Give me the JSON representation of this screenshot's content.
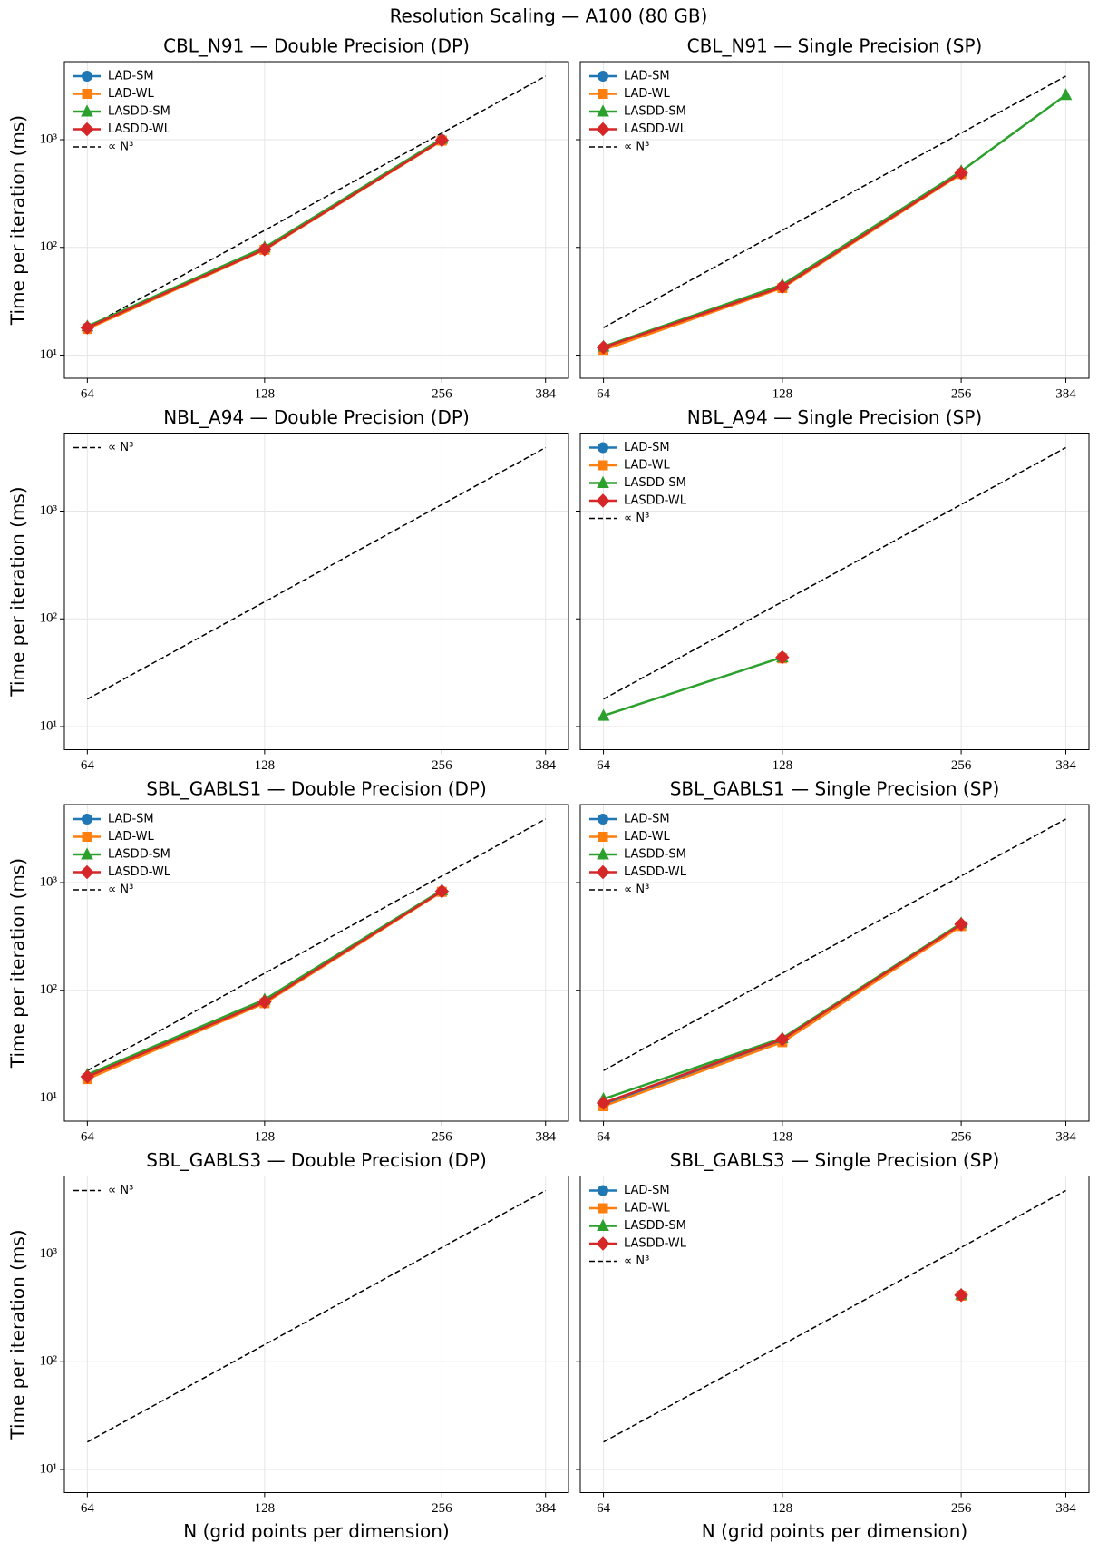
{
  "title": "Resolution Scaling — A100 (80 GB)",
  "chart_data": [
    {
      "type": "line",
      "title": "CBL_N91 — Double Precision (DP)",
      "ylabel": "Time per iteration (ms)",
      "x": [
        64,
        128,
        256,
        384
      ],
      "xscale": "log",
      "yscale": "log",
      "xlim": [
        58.5,
        420
      ],
      "xticks": [
        64,
        128,
        256,
        384
      ],
      "ylim": [
        6.1,
        5300
      ],
      "yticks": [
        {
          "value": 10,
          "label": "10¹"
        },
        {
          "value": 100,
          "label": "10²"
        },
        {
          "value": 1000,
          "label": "10³"
        }
      ],
      "grid": true,
      "legend": "upper left",
      "series": [
        {
          "name": "LAD-SM",
          "color": "#1f77b4",
          "marker": "circle",
          "values": [
            18,
            97,
            1000,
            null
          ]
        },
        {
          "name": "LAD-WL",
          "color": "#ff7f0e",
          "marker": "square",
          "values": [
            17.5,
            95,
            980,
            null
          ]
        },
        {
          "name": "LASDD-SM",
          "color": "#2ca02c",
          "marker": "triangle",
          "values": [
            18.5,
            100,
            1020,
            null
          ]
        },
        {
          "name": "LASDD-WL",
          "color": "#d62728",
          "marker": "diamond",
          "values": [
            18,
            96,
            990,
            null
          ]
        },
        {
          "name": "∝ N³",
          "color": "#000000",
          "linestyle": "dashed",
          "values": [
            18,
            144,
            1152,
            3888
          ]
        }
      ]
    },
    {
      "type": "line",
      "title": "CBL_N91 — Single Precision (SP)",
      "x": [
        64,
        128,
        256,
        384
      ],
      "xscale": "log",
      "yscale": "log",
      "xlim": [
        58.5,
        420
      ],
      "xticks": [
        64,
        128,
        256,
        384
      ],
      "ylim": [
        6.1,
        5300
      ],
      "yticks": [
        10,
        100,
        1000
      ],
      "grid": true,
      "legend": "upper left",
      "series": [
        {
          "name": "LAD-SM",
          "color": "#1f77b4",
          "marker": "circle",
          "values": [
            11.5,
            43,
            490,
            null
          ]
        },
        {
          "name": "LAD-WL",
          "color": "#ff7f0e",
          "marker": "square",
          "values": [
            11.2,
            42,
            480,
            null
          ]
        },
        {
          "name": "LASDD-SM",
          "color": "#2ca02c",
          "marker": "triangle",
          "values": [
            12,
            45,
            510,
            2600
          ]
        },
        {
          "name": "LASDD-WL",
          "color": "#d62728",
          "marker": "diamond",
          "values": [
            11.8,
            43,
            490,
            null
          ]
        },
        {
          "name": "∝ N³",
          "color": "#000000",
          "linestyle": "dashed",
          "values": [
            18,
            144,
            1152,
            3888
          ]
        }
      ]
    },
    {
      "type": "line",
      "title": "NBL_A94 — Double Precision (DP)",
      "ylabel": "Time per iteration (ms)",
      "x": [
        64,
        128,
        256,
        384
      ],
      "xscale": "log",
      "yscale": "log",
      "xlim": [
        58.5,
        420
      ],
      "xticks": [
        64,
        128,
        256,
        384
      ],
      "ylim": [
        6.1,
        5300
      ],
      "yticks": [
        {
          "value": 10,
          "label": "10¹"
        },
        {
          "value": 100,
          "label": "10²"
        },
        {
          "value": 1000,
          "label": "10³"
        }
      ],
      "grid": true,
      "legend": "upper left",
      "series": [
        {
          "name": "∝ N³",
          "color": "#000000",
          "linestyle": "dashed",
          "values": [
            18,
            144,
            1152,
            3888
          ]
        }
      ]
    },
    {
      "type": "line",
      "title": "NBL_A94 — Single Precision (SP)",
      "x": [
        64,
        128,
        256,
        384
      ],
      "xscale": "log",
      "yscale": "log",
      "xlim": [
        58.5,
        420
      ],
      "xticks": [
        64,
        128,
        256,
        384
      ],
      "ylim": [
        6.1,
        5300
      ],
      "yticks": [
        10,
        100,
        1000
      ],
      "grid": true,
      "legend": "upper left",
      "series": [
        {
          "name": "LAD-SM",
          "color": "#1f77b4",
          "marker": "circle",
          "values": [
            null,
            44,
            null,
            null
          ]
        },
        {
          "name": "LAD-WL",
          "color": "#ff7f0e",
          "marker": "square",
          "values": [
            null,
            43,
            null,
            null
          ]
        },
        {
          "name": "LASDD-SM",
          "color": "#2ca02c",
          "marker": "triangle",
          "values": [
            12.6,
            44,
            null,
            null
          ]
        },
        {
          "name": "LASDD-WL",
          "color": "#d62728",
          "marker": "diamond",
          "values": [
            null,
            44,
            null,
            null
          ]
        },
        {
          "name": "∝ N³",
          "color": "#000000",
          "linestyle": "dashed",
          "values": [
            18,
            144,
            1152,
            3888
          ]
        }
      ]
    },
    {
      "type": "line",
      "title": "SBL_GABLS1 — Double Precision (DP)",
      "ylabel": "Time per iteration (ms)",
      "x": [
        64,
        128,
        256,
        384
      ],
      "xscale": "log",
      "yscale": "log",
      "xlim": [
        58.5,
        420
      ],
      "xticks": [
        64,
        128,
        256,
        384
      ],
      "ylim": [
        6.1,
        5300
      ],
      "yticks": [
        {
          "value": 10,
          "label": "10¹"
        },
        {
          "value": 100,
          "label": "10²"
        },
        {
          "value": 1000,
          "label": "10³"
        }
      ],
      "grid": true,
      "legend": "upper left",
      "series": [
        {
          "name": "LAD-SM",
          "color": "#1f77b4",
          "marker": "circle",
          "values": [
            15.5,
            78,
            830,
            null
          ]
        },
        {
          "name": "LAD-WL",
          "color": "#ff7f0e",
          "marker": "square",
          "values": [
            15,
            76,
            820,
            null
          ]
        },
        {
          "name": "LASDD-SM",
          "color": "#2ca02c",
          "marker": "triangle",
          "values": [
            16.5,
            82,
            850,
            null
          ]
        },
        {
          "name": "LASDD-WL",
          "color": "#d62728",
          "marker": "diamond",
          "values": [
            15.8,
            78,
            830,
            null
          ]
        },
        {
          "name": "∝ N³",
          "color": "#000000",
          "linestyle": "dashed",
          "values": [
            18,
            144,
            1152,
            3888
          ]
        }
      ]
    },
    {
      "type": "line",
      "title": "SBL_GABLS1 — Single Precision (SP)",
      "x": [
        64,
        128,
        256,
        384
      ],
      "xscale": "log",
      "yscale": "log",
      "xlim": [
        58.5,
        420
      ],
      "xticks": [
        64,
        128,
        256,
        384
      ],
      "ylim": [
        6.1,
        5300
      ],
      "yticks": [
        10,
        100,
        1000
      ],
      "grid": true,
      "legend": "upper left",
      "series": [
        {
          "name": "LAD-SM",
          "color": "#1f77b4",
          "marker": "circle",
          "values": [
            8.7,
            34,
            400,
            null
          ]
        },
        {
          "name": "LAD-WL",
          "color": "#ff7f0e",
          "marker": "square",
          "values": [
            8.4,
            33,
            395,
            null
          ]
        },
        {
          "name": "LASDD-SM",
          "color": "#2ca02c",
          "marker": "triangle",
          "values": [
            9.8,
            36,
            420,
            null
          ]
        },
        {
          "name": "LASDD-WL",
          "color": "#d62728",
          "marker": "diamond",
          "values": [
            9,
            35,
            410,
            null
          ]
        },
        {
          "name": "∝ N³",
          "color": "#000000",
          "linestyle": "dashed",
          "values": [
            18,
            144,
            1152,
            3888
          ]
        }
      ]
    },
    {
      "type": "line",
      "title": "SBL_GABLS3 — Double Precision (DP)",
      "ylabel": "Time per iteration (ms)",
      "xlabel": "N (grid points per dimension)",
      "x": [
        64,
        128,
        256,
        384
      ],
      "xscale": "log",
      "yscale": "log",
      "xlim": [
        58.5,
        420
      ],
      "xticks": [
        64,
        128,
        256,
        384
      ],
      "ylim": [
        6.1,
        5300
      ],
      "yticks": [
        {
          "value": 10,
          "label": "10¹"
        },
        {
          "value": 100,
          "label": "10²"
        },
        {
          "value": 1000,
          "label": "10³"
        }
      ],
      "grid": true,
      "legend": "upper left",
      "series": [
        {
          "name": "∝ N³",
          "color": "#000000",
          "linestyle": "dashed",
          "values": [
            18,
            144,
            1152,
            3888
          ]
        }
      ]
    },
    {
      "type": "line",
      "title": "SBL_GABLS3 — Single Precision (SP)",
      "xlabel": "N (grid points per dimension)",
      "x": [
        64,
        128,
        256,
        384
      ],
      "xscale": "log",
      "yscale": "log",
      "xlim": [
        58.5,
        420
      ],
      "xticks": [
        64,
        128,
        256,
        384
      ],
      "ylim": [
        6.1,
        5300
      ],
      "yticks": [
        10,
        100,
        1000
      ],
      "grid": true,
      "legend": "upper left",
      "series": [
        {
          "name": "LAD-SM",
          "color": "#1f77b4",
          "marker": "circle",
          "values": [
            null,
            null,
            415,
            null
          ]
        },
        {
          "name": "LAD-WL",
          "color": "#ff7f0e",
          "marker": "square",
          "values": [
            null,
            null,
            410,
            null
          ]
        },
        {
          "name": "LASDD-SM",
          "color": "#2ca02c",
          "marker": "triangle",
          "values": [
            null,
            null,
            420,
            null
          ]
        },
        {
          "name": "LASDD-WL",
          "color": "#d62728",
          "marker": "diamond",
          "values": [
            null,
            null,
            415,
            null
          ]
        },
        {
          "name": "∝ N³",
          "color": "#000000",
          "linestyle": "dashed",
          "values": [
            18,
            144,
            1152,
            3888
          ]
        }
      ]
    }
  ]
}
